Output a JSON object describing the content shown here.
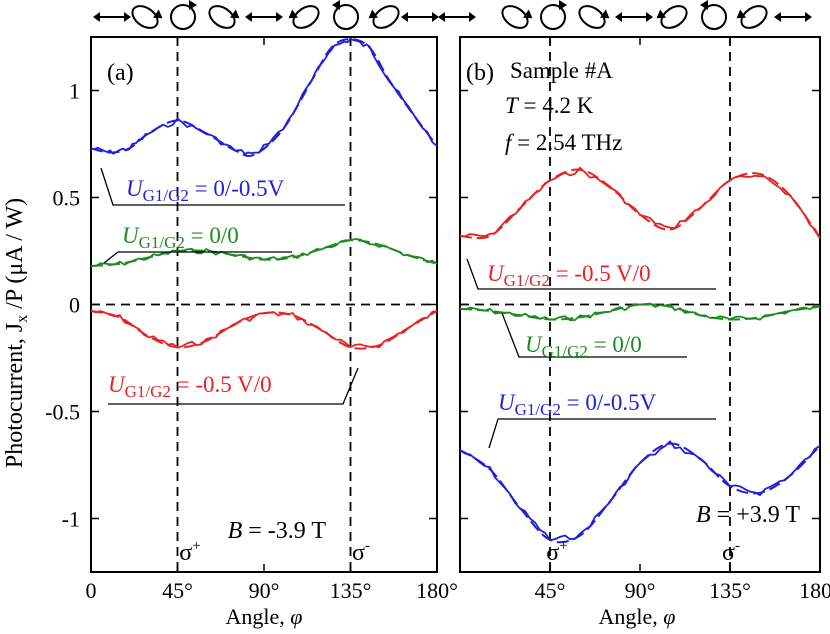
{
  "ylabel": "Photocurrent, J",
  "ylabel_sub": "x",
  "ylabel_tail": " /P (μA / W)",
  "xlabel": "Angle, ",
  "xlabel_sym": "φ",
  "ytick_labels": [
    "1",
    "0.5",
    "0",
    "-0.5",
    "-1"
  ],
  "colors": {
    "blue": "#1f1fdc",
    "green": "#1f8a1f",
    "red": "#e62222",
    "axis": "#000000"
  },
  "polarization_icons": [
    "double-arrow-icon",
    "ellipse-cw-icon",
    "circle-cw-icon",
    "ellipse-cw-icon",
    "double-arrow-icon",
    "ellipse-ccw-icon",
    "circle-ccw-icon",
    "ellipse-ccw-icon",
    "double-arrow-icon"
  ],
  "chart_data": [
    {
      "type": "line",
      "panel_label": "(a)",
      "xlim": [
        0,
        180
      ],
      "ylim": [
        -1.25,
        1.25
      ],
      "x_tick_labels": [
        "0",
        "45°",
        "90°",
        "135°",
        "180°"
      ],
      "field_label": "B = -3.9 T",
      "sigma_labels": [
        "σ+",
        "σ-"
      ],
      "vlines": [
        45,
        135
      ],
      "annotations": [],
      "series": [
        {
          "name": "UG1/G2 = 0/-0.5V",
          "label_main": "U",
          "label_sub": "G1/G2",
          "label_tail": " = 0/-0.5V",
          "color": "#1f1fdc",
          "x": [
            0,
            10,
            20,
            30,
            45,
            60,
            75,
            85,
            100,
            115,
            125,
            135,
            145,
            155,
            165,
            180
          ],
          "y": [
            0.73,
            0.71,
            0.73,
            0.8,
            0.86,
            0.8,
            0.72,
            0.7,
            0.82,
            1.05,
            1.2,
            1.24,
            1.2,
            1.05,
            0.92,
            0.74
          ]
        },
        {
          "name": "UG1/G2 = 0/0",
          "label_main": "U",
          "label_sub": "G1/G2",
          "label_tail": " = 0/0",
          "color": "#1f8a1f",
          "x": [
            0,
            15,
            30,
            45,
            60,
            75,
            90,
            105,
            120,
            135,
            150,
            165,
            180
          ],
          "y": [
            0.18,
            0.19,
            0.22,
            0.25,
            0.25,
            0.23,
            0.21,
            0.22,
            0.26,
            0.3,
            0.28,
            0.23,
            0.19
          ]
        },
        {
          "name": "UG1/G2 = -0.5 V/0",
          "label_main": "U",
          "label_sub": "G1/G2",
          "label_tail": " = -0.5 V/0",
          "color": "#e62222",
          "x": [
            0,
            15,
            30,
            45,
            60,
            75,
            90,
            105,
            120,
            135,
            150,
            165,
            180
          ],
          "y": [
            -0.03,
            -0.06,
            -0.15,
            -0.2,
            -0.17,
            -0.09,
            -0.04,
            -0.05,
            -0.12,
            -0.2,
            -0.19,
            -0.11,
            -0.03
          ]
        }
      ]
    },
    {
      "type": "line",
      "panel_label": "(b)",
      "xlim": [
        0,
        180
      ],
      "ylim": [
        -1.25,
        1.25
      ],
      "x_tick_labels": [
        "45°",
        "90°",
        "135°",
        "180°"
      ],
      "field_label": "B = +3.9 T",
      "sigma_labels": [
        "σ+",
        "σ-"
      ],
      "vlines": [
        45,
        135
      ],
      "annotations": [
        "Sample #A",
        "T = 4.2 K",
        "f = 2.54 THz"
      ],
      "series": [
        {
          "name": "UG1/G2 = -0.5 V/0",
          "label_main": "U",
          "label_sub": "G1/G2",
          "label_tail": " = -0.5 V/0",
          "color": "#e62222",
          "x": [
            0,
            15,
            30,
            45,
            60,
            75,
            90,
            105,
            120,
            135,
            150,
            165,
            180
          ],
          "y": [
            0.32,
            0.32,
            0.45,
            0.58,
            0.63,
            0.55,
            0.42,
            0.35,
            0.45,
            0.58,
            0.61,
            0.51,
            0.31
          ]
        },
        {
          "name": "UG1/G2 = 0/0",
          "label_main": "U",
          "label_sub": "G1/G2",
          "label_tail": " = 0/0",
          "color": "#1f8a1f",
          "x": [
            0,
            15,
            30,
            45,
            60,
            75,
            90,
            105,
            120,
            135,
            150,
            165,
            180
          ],
          "y": [
            -0.02,
            -0.03,
            -0.05,
            -0.07,
            -0.06,
            -0.03,
            0.0,
            -0.01,
            -0.05,
            -0.07,
            -0.06,
            -0.03,
            -0.01
          ]
        },
        {
          "name": "UG1/G2 = 0/-0.5V",
          "label_main": "U",
          "label_sub": "G1/G2",
          "label_tail": " = 0/-0.5V",
          "color": "#1f1fdc",
          "x": [
            0,
            15,
            30,
            45,
            60,
            75,
            90,
            105,
            120,
            135,
            150,
            165,
            180
          ],
          "y": [
            -0.68,
            -0.77,
            -0.95,
            -1.1,
            -1.08,
            -0.92,
            -0.74,
            -0.65,
            -0.72,
            -0.85,
            -0.88,
            -0.8,
            -0.66
          ]
        }
      ]
    }
  ]
}
